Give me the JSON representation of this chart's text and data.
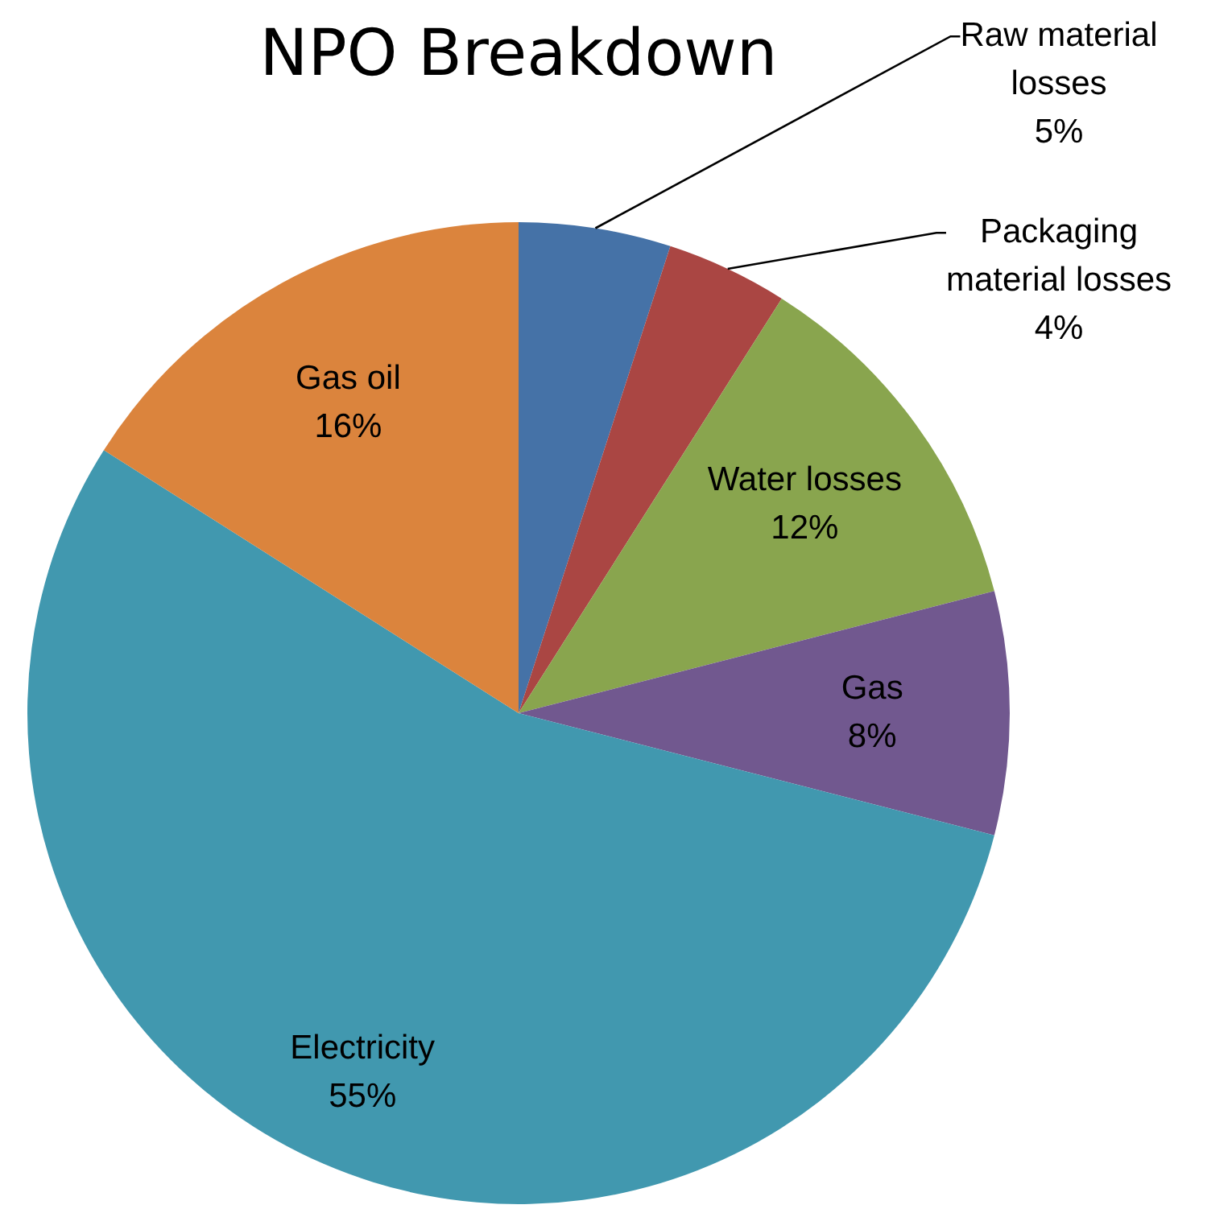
{
  "chart_data": {
    "type": "pie",
    "title": "NPO Breakdown",
    "categories": [
      "Raw material losses",
      "Packaging material losses",
      "Water losses",
      "Gas",
      "Electricity",
      "Gas oil"
    ],
    "values": [
      5,
      4,
      12,
      8,
      55,
      16
    ],
    "value_labels": [
      "5%",
      "4%",
      "12%",
      "8%",
      "55%",
      "16%"
    ],
    "colors": [
      "#4572a7",
      "#aa4643",
      "#89a54e",
      "#71588f",
      "#4198af",
      "#db843d"
    ],
    "legend": false
  }
}
